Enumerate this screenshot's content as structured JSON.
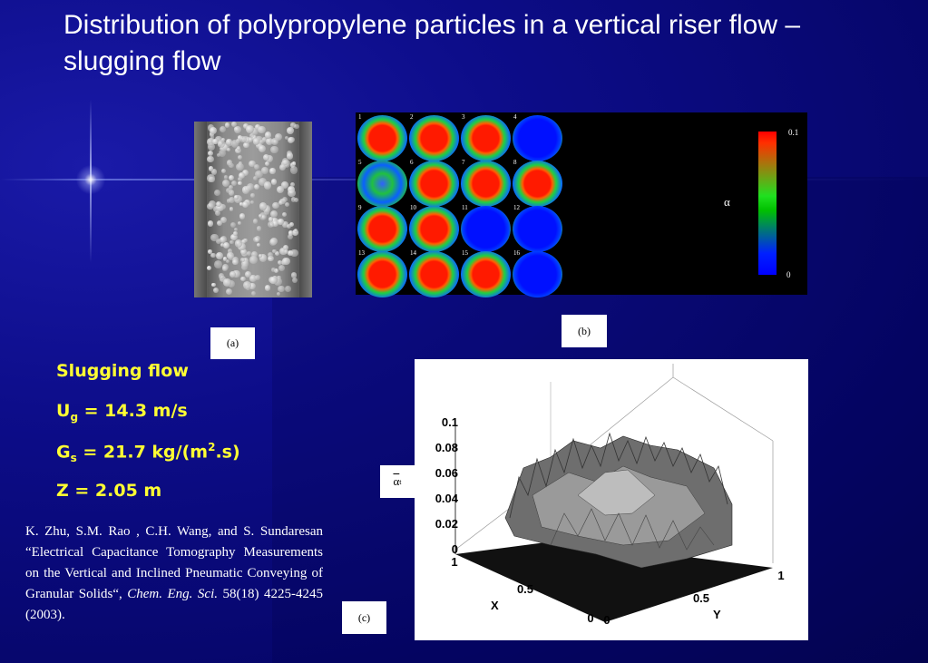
{
  "slide": {
    "title": "Distribution of polypropylene particles in a vertical riser flow – slugging flow"
  },
  "figure_a": {
    "caption": "(a)"
  },
  "figure_b": {
    "caption": "(b)",
    "cell_labels": [
      "1",
      "2",
      "3",
      "4",
      "5",
      "6",
      "7",
      "8",
      "9",
      "10",
      "11",
      "12",
      "13",
      "14",
      "15",
      "16"
    ],
    "colorbar": {
      "max_label": "0.1",
      "min_label": "0",
      "variable": "α",
      "colors": [
        "#ff0000",
        "#00c000",
        "#0000ff"
      ]
    }
  },
  "figure_c": {
    "caption": "(c)",
    "z_axis_label": "α",
    "z_axis_sub": "t",
    "z_ticks": [
      "0.1",
      "0.08",
      "0.06",
      "0.04",
      "0.02",
      "0"
    ],
    "x_axis_label": "X",
    "x_ticks": [
      "1",
      "0.5",
      "0"
    ],
    "y_axis_label": "Y",
    "y_ticks": [
      "0",
      "0.5",
      "1"
    ]
  },
  "conditions": {
    "heading": "Slugging flow",
    "ug_symbol": "U",
    "ug_sub": "g",
    "ug_value": " = 14.3 m/s",
    "gs_symbol": "G",
    "gs_sub": "s",
    "gs_value_pre": " =  21.7 kg/(m",
    "gs_sup": "2",
    "gs_value_post": ".s)",
    "z": "Z = 2.05 m"
  },
  "reference": {
    "authors_title": "K. Zhu, S.M. Rao , C.H. Wang, and S. Sundaresan “Electrical Capacitance Tomography Measurements on the Vertical and Inclined Pneumatic Conveying of Granular Solids“, ",
    "journal": "Chem. Eng. Sci.",
    "details": " 58(18) 4225-4245 (2003)."
  }
}
